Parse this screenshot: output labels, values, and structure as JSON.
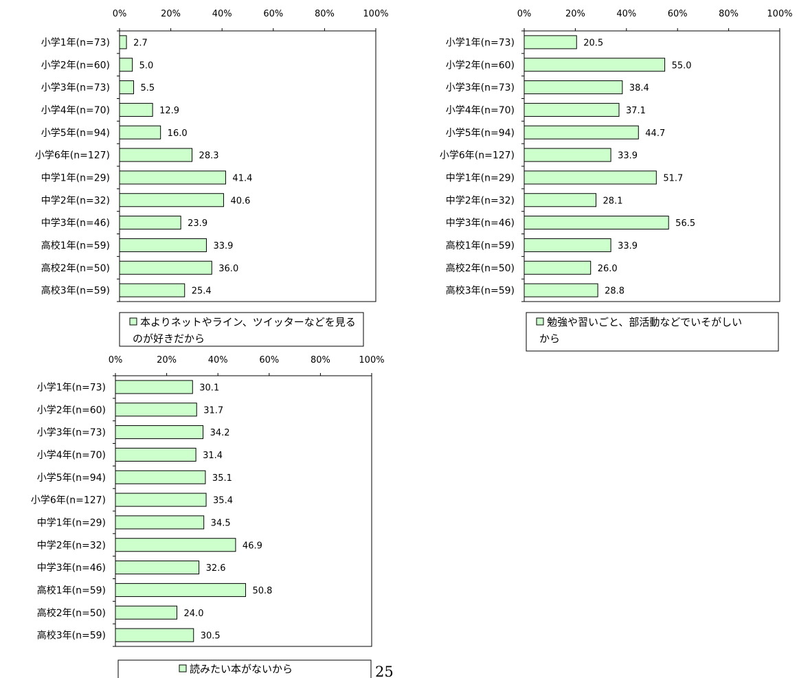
{
  "page_number": "25",
  "colors": {
    "bar_fill": "#ccffcc",
    "bar_stroke": "#000000",
    "frame": "#000000"
  },
  "chart_data": [
    {
      "type": "bar",
      "orientation": "horizontal",
      "categories": [
        "小学1年(n=73)",
        "小学2年(n=60)",
        "小学3年(n=73)",
        "小学4年(n=70)",
        "小学5年(n=94)",
        "小学6年(n=127)",
        "中学1年(n=29)",
        "中学2年(n=32)",
        "中学3年(n=46)",
        "高校1年(n=59)",
        "高校2年(n=50)",
        "高校3年(n=59)"
      ],
      "series": [
        {
          "name": "本よりネットやライン、ツイッターなどを見るのが好きだから",
          "legend_lines": [
            "本よりネットやライン、ツイッターなどを見る",
            "のが好きだから"
          ],
          "values": [
            2.7,
            5.0,
            5.5,
            12.9,
            16.0,
            28.3,
            41.4,
            40.6,
            23.9,
            33.9,
            36.0,
            25.4
          ]
        }
      ],
      "x_ticks": [
        "0%",
        "20%",
        "40%",
        "60%",
        "80%",
        "100%"
      ],
      "xlim": [
        0,
        100
      ],
      "grid": false,
      "legend_position": "bottom"
    },
    {
      "type": "bar",
      "orientation": "horizontal",
      "categories": [
        "小学1年(n=73)",
        "小学2年(n=60)",
        "小学3年(n=73)",
        "小学4年(n=70)",
        "小学5年(n=94)",
        "小学6年(n=127)",
        "中学1年(n=29)",
        "中学2年(n=32)",
        "中学3年(n=46)",
        "高校1年(n=59)",
        "高校2年(n=50)",
        "高校3年(n=59)"
      ],
      "series": [
        {
          "name": "勉強や習いごと、部活動などでいそがしいから",
          "legend_lines": [
            "勉強や習いごと、部活動などでいそがしい",
            "から"
          ],
          "values": [
            20.5,
            55.0,
            38.4,
            37.1,
            44.7,
            33.9,
            51.7,
            28.1,
            56.5,
            33.9,
            26.0,
            28.8
          ]
        }
      ],
      "x_ticks": [
        "0%",
        "20%",
        "40%",
        "60%",
        "80%",
        "100%"
      ],
      "xlim": [
        0,
        100
      ],
      "grid": false,
      "legend_position": "bottom"
    },
    {
      "type": "bar",
      "orientation": "horizontal",
      "categories": [
        "小学1年(n=73)",
        "小学2年(n=60)",
        "小学3年(n=73)",
        "小学4年(n=70)",
        "小学5年(n=94)",
        "小学6年(n=127)",
        "中学1年(n=29)",
        "中学2年(n=32)",
        "中学3年(n=46)",
        "高校1年(n=59)",
        "高校2年(n=50)",
        "高校3年(n=59)"
      ],
      "series": [
        {
          "name": "読みたい本がないから",
          "legend_lines": [
            "読みたい本がないから"
          ],
          "values": [
            30.1,
            31.7,
            34.2,
            31.4,
            35.1,
            35.4,
            34.5,
            46.9,
            32.6,
            50.8,
            24.0,
            30.5
          ]
        }
      ],
      "x_ticks": [
        "0%",
        "20%",
        "40%",
        "60%",
        "80%",
        "100%"
      ],
      "xlim": [
        0,
        100
      ],
      "grid": false,
      "legend_position": "bottom"
    }
  ]
}
